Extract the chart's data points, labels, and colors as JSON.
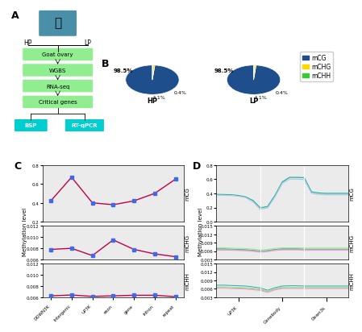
{
  "panel_A": {
    "flowchart_boxes": [
      "Goat ovary",
      "WGBS",
      "RNA-seq",
      "Critical genes"
    ],
    "flowchart_terminals": [
      "BSP",
      "RT-qPCR"
    ],
    "box_color": "#90EE90",
    "terminal_color": "#00CED1",
    "hp_lp_labels": [
      "HP",
      "LP"
    ]
  },
  "panel_B": {
    "slices_HP": [
      98.5,
      1.1,
      0.4
    ],
    "slices_LP": [
      98.5,
      1.1,
      0.4
    ],
    "colors": [
      "#1F4E8C",
      "#FFD700",
      "#32CD32"
    ],
    "legend_labels": [
      "mCG",
      "mCHG",
      "mCHH"
    ],
    "pie_labels": [
      "HP",
      "LP"
    ]
  },
  "panel_C": {
    "categories": [
      "DOWN3K",
      "Intergenic",
      "UP3K",
      "exon",
      "gene",
      "intron",
      "repeat"
    ],
    "mCG_values": [
      0.42,
      0.67,
      0.4,
      0.38,
      0.42,
      0.5,
      0.65
    ],
    "mCHG_values": [
      0.0078,
      0.008,
      0.0067,
      0.0095,
      0.0078,
      0.007,
      0.0065
    ],
    "mCHH_values": [
      0.00625,
      0.0064,
      0.00615,
      0.00625,
      0.00635,
      0.00635,
      0.0061
    ],
    "line_color": "#C0004B",
    "marker_color": "#4169E1",
    "mCG_ylim": [
      0.2,
      0.8
    ],
    "mCHG_ylim": [
      0.006,
      0.012
    ],
    "mCHH_ylim": [
      0.006,
      0.012
    ],
    "mCG_yticks": [
      0.2,
      0.4,
      0.6,
      0.8
    ],
    "mCHG_yticks": [
      0.006,
      0.008,
      0.01,
      0.012
    ],
    "mCHH_yticks": [
      0.006,
      0.008,
      0.01,
      0.012
    ],
    "ylabel": "Methylation level"
  },
  "panel_D": {
    "x_ticks": [
      "UP3K",
      "Genebody",
      "Down3k"
    ],
    "mCG_line1": {
      "color": "#20B2AA",
      "values": [
        0.385,
        0.383,
        0.38,
        0.37,
        0.35,
        0.3,
        0.195,
        0.215,
        0.37,
        0.56,
        0.625,
        0.625,
        0.62,
        0.42,
        0.405,
        0.4,
        0.4,
        0.4,
        0.4
      ]
    },
    "mCG_line2": {
      "color": "#B0C8DE",
      "values": [
        0.375,
        0.373,
        0.37,
        0.36,
        0.34,
        0.28,
        0.175,
        0.195,
        0.35,
        0.54,
        0.6,
        0.6,
        0.595,
        0.4,
        0.385,
        0.38,
        0.38,
        0.38,
        0.38
      ]
    },
    "mCHG_lines": [
      {
        "color": "#20B2AA",
        "values": [
          0.0068,
          0.0068,
          0.0067,
          0.0066,
          0.0065,
          0.0063,
          0.006,
          0.0062,
          0.0066,
          0.0068,
          0.0068,
          0.0068,
          0.0067,
          0.0067,
          0.0067,
          0.0067,
          0.0067,
          0.0067,
          0.0067
        ]
      },
      {
        "color": "#E9967A",
        "values": [
          0.0065,
          0.0065,
          0.0065,
          0.0064,
          0.0063,
          0.0061,
          0.0058,
          0.006,
          0.0064,
          0.0066,
          0.0066,
          0.0066,
          0.0065,
          0.0065,
          0.0065,
          0.0065,
          0.0065,
          0.0065,
          0.0065
        ]
      },
      {
        "color": "#90EE90",
        "values": [
          0.0072,
          0.0072,
          0.0071,
          0.007,
          0.0069,
          0.0067,
          0.0064,
          0.0066,
          0.007,
          0.0072,
          0.0072,
          0.0072,
          0.0071,
          0.0071,
          0.0071,
          0.0071,
          0.0071,
          0.0071,
          0.0071
        ]
      },
      {
        "color": "#DDA0DD",
        "values": [
          0.0063,
          0.0063,
          0.0063,
          0.0062,
          0.0061,
          0.0059,
          0.0056,
          0.0058,
          0.0062,
          0.0064,
          0.0064,
          0.0064,
          0.0063,
          0.0063,
          0.0063,
          0.0063,
          0.0063,
          0.0063,
          0.0063
        ]
      }
    ],
    "mCHH_lines": [
      {
        "color": "#20B2AA",
        "values": [
          0.0073,
          0.0073,
          0.0072,
          0.0071,
          0.007,
          0.0067,
          0.0063,
          0.0055,
          0.0064,
          0.007,
          0.0071,
          0.0071,
          0.007,
          0.007,
          0.007,
          0.007,
          0.007,
          0.007,
          0.007
        ]
      },
      {
        "color": "#E9967A",
        "values": [
          0.0065,
          0.0065,
          0.0064,
          0.0063,
          0.0062,
          0.006,
          0.0057,
          0.005,
          0.0059,
          0.0064,
          0.0064,
          0.0064,
          0.0064,
          0.0064,
          0.0064,
          0.0064,
          0.0064,
          0.0064,
          0.0064
        ]
      },
      {
        "color": "#90EE90",
        "values": [
          0.0067,
          0.0067,
          0.0066,
          0.0065,
          0.0064,
          0.0062,
          0.0059,
          0.0052,
          0.0061,
          0.0066,
          0.0066,
          0.0066,
          0.0066,
          0.0066,
          0.0066,
          0.0066,
          0.0066,
          0.0066,
          0.0066
        ]
      },
      {
        "color": "#DDA0DD",
        "values": [
          0.0062,
          0.0062,
          0.0061,
          0.006,
          0.0059,
          0.0057,
          0.0054,
          0.0047,
          0.0056,
          0.0061,
          0.0061,
          0.0061,
          0.0061,
          0.0061,
          0.0061,
          0.0061,
          0.0061,
          0.0061,
          0.0061
        ]
      }
    ],
    "mCG_ylim": [
      0.0,
      0.8
    ],
    "mCHG_ylim": [
      0.003,
      0.015
    ],
    "mCHH_ylim": [
      0.003,
      0.015
    ],
    "mCG_yticks": [
      0.0,
      0.2,
      0.4,
      0.6,
      0.8
    ],
    "mCHG_yticks": [
      0.003,
      0.006,
      0.009,
      0.012,
      0.015
    ],
    "mCHH_yticks": [
      0.003,
      0.006,
      0.009,
      0.012,
      0.015
    ],
    "ylabel": "Methylation level"
  }
}
